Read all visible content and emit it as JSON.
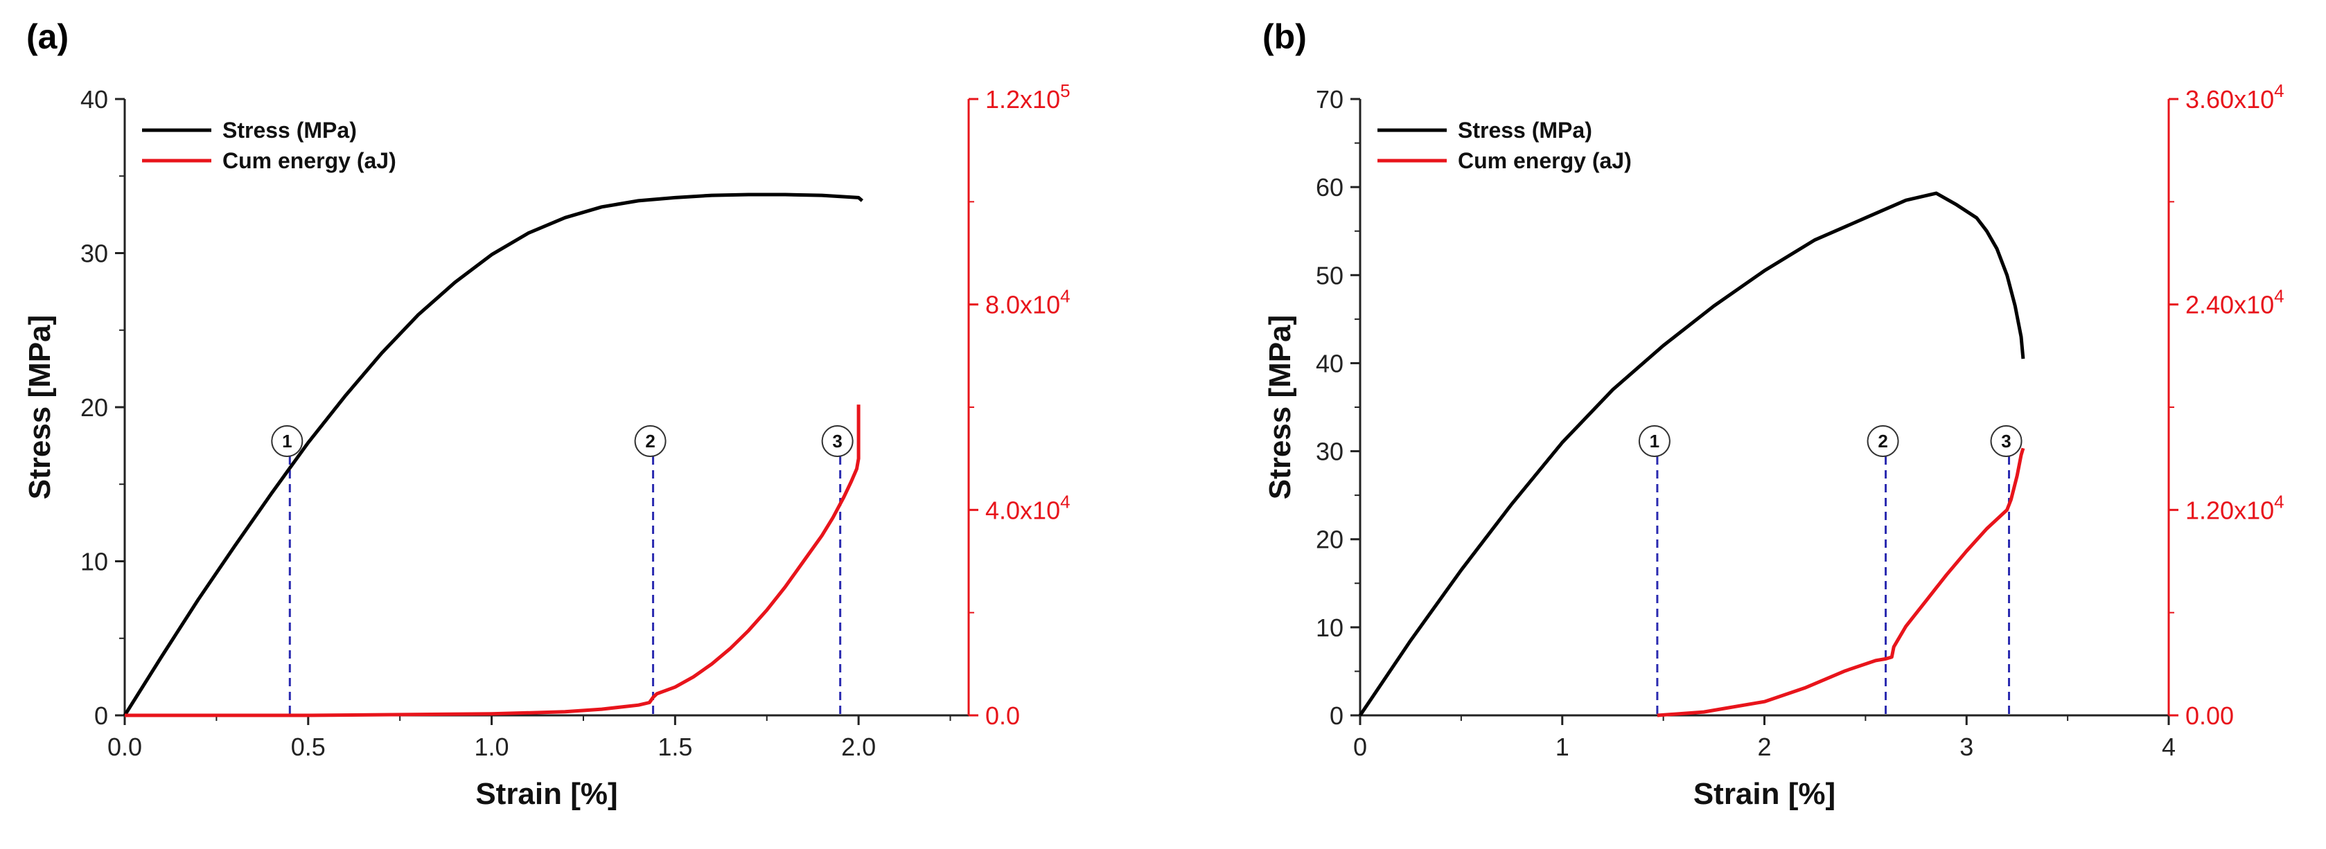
{
  "chart_data": [
    {
      "type": "line",
      "panel_label": "(a)",
      "xlabel": "Strain [%]",
      "ylabel": "Stress [MPa]",
      "xlim": [
        0,
        2.3
      ],
      "xticks": [
        0.0,
        0.5,
        1.0,
        1.5,
        2.0
      ],
      "xtick_labels": [
        "0.0",
        "0.5",
        "1.0",
        "1.5",
        "2.0"
      ],
      "ylim": [
        0,
        40
      ],
      "yticks": [
        0,
        10,
        20,
        30,
        40
      ],
      "ytick_labels": [
        "0",
        "10",
        "20",
        "30",
        "40"
      ],
      "y2lim": [
        0,
        120000
      ],
      "y2ticks": [
        0,
        40000,
        80000,
        120000
      ],
      "y2tick_labels": [
        "0.0",
        "4.0x10",
        "8.0x10",
        "1.2x10"
      ],
      "y2tick_exponents": [
        "",
        "4",
        "4",
        "5"
      ],
      "y2color": "#e8141b",
      "legend": [
        "Stress (MPa)",
        "Cum energy (aJ)"
      ],
      "series": [
        {
          "name": "Stress (MPa)",
          "axis": "left",
          "color": "#000000",
          "x": [
            0,
            0.1,
            0.2,
            0.3,
            0.4,
            0.5,
            0.6,
            0.7,
            0.8,
            0.9,
            1.0,
            1.1,
            1.2,
            1.3,
            1.4,
            1.5,
            1.6,
            1.7,
            1.8,
            1.9,
            2.0,
            2.01
          ],
          "y": [
            0,
            3.8,
            7.5,
            11.0,
            14.4,
            17.7,
            20.7,
            23.5,
            26.0,
            28.1,
            29.9,
            31.3,
            32.3,
            33.0,
            33.4,
            33.6,
            33.75,
            33.8,
            33.8,
            33.75,
            33.6,
            33.4
          ]
        },
        {
          "name": "Cum energy (aJ)",
          "axis": "right",
          "color": "#e8141b",
          "x": [
            0,
            0.5,
            1.0,
            1.2,
            1.3,
            1.4,
            1.43,
            1.44,
            1.45,
            1.5,
            1.55,
            1.6,
            1.65,
            1.7,
            1.75,
            1.8,
            1.85,
            1.9,
            1.93,
            1.96,
            1.98,
            1.995,
            2.0,
            2.0,
            2.0
          ],
          "y": [
            0,
            0,
            300,
            700,
            1200,
            2000,
            2500,
            3500,
            4200,
            5500,
            7500,
            10000,
            13000,
            16500,
            20500,
            25000,
            30000,
            35000,
            38500,
            42500,
            45500,
            48000,
            50000,
            55000,
            60500
          ]
        }
      ],
      "markers": [
        {
          "label": "1",
          "x": 0.45,
          "y": 15.1
        },
        {
          "label": "2",
          "x": 1.44,
          "y": 0.7
        },
        {
          "label": "3",
          "x": 1.95,
          "y": 13.9
        }
      ]
    },
    {
      "type": "line",
      "panel_label": "(b)",
      "xlabel": "Strain [%]",
      "ylabel": "Stress [MPa]",
      "xlim": [
        0,
        4
      ],
      "xticks": [
        0,
        1,
        2,
        3,
        4
      ],
      "xtick_labels": [
        "0",
        "1",
        "2",
        "3",
        "4"
      ],
      "ylim": [
        0,
        70
      ],
      "yticks": [
        0,
        10,
        20,
        30,
        40,
        50,
        60,
        70
      ],
      "ytick_labels": [
        "0",
        "10",
        "20",
        "30",
        "40",
        "50",
        "60",
        "70"
      ],
      "y2lim": [
        0,
        36000
      ],
      "y2ticks": [
        0,
        12000,
        24000,
        36000
      ],
      "y2tick_labels": [
        "0.00",
        "1.20x10",
        "2.40x10",
        "3.60x10"
      ],
      "y2tick_exponents": [
        "",
        "4",
        "4",
        "4"
      ],
      "y2color": "#e8141b",
      "legend": [
        "Stress (MPa)",
        "Cum energy (aJ)"
      ],
      "series": [
        {
          "name": "Stress (MPa)",
          "axis": "left",
          "color": "#000000",
          "x": [
            0,
            0.25,
            0.5,
            0.75,
            1.0,
            1.25,
            1.5,
            1.75,
            2.0,
            2.25,
            2.5,
            2.7,
            2.85,
            2.95,
            3.05,
            3.1,
            3.15,
            3.2,
            3.24,
            3.27,
            3.28
          ],
          "y": [
            0,
            8.5,
            16.5,
            24.0,
            31.0,
            37.0,
            42.0,
            46.5,
            50.5,
            54.0,
            56.5,
            58.5,
            59.3,
            58.0,
            56.5,
            55.0,
            53.0,
            50.0,
            46.5,
            43.0,
            40.5
          ]
        },
        {
          "name": "Cum energy (aJ)",
          "axis": "right",
          "color": "#e8141b",
          "x": [
            1.47,
            1.7,
            1.8,
            2.0,
            2.2,
            2.4,
            2.55,
            2.6,
            2.63,
            2.64,
            2.7,
            2.8,
            2.9,
            3.0,
            3.1,
            3.2,
            3.22,
            3.25,
            3.27,
            3.28
          ],
          "y": [
            0,
            200,
            400,
            800,
            1600,
            2600,
            3200,
            3300,
            3400,
            4000,
            5200,
            6700,
            8200,
            9600,
            10900,
            12000,
            12600,
            14000,
            15200,
            15600
          ]
        }
      ],
      "markers": [
        {
          "label": "1",
          "x": 1.47,
          "y": 0
        },
        {
          "label": "2",
          "x": 2.6,
          "y": 6.4
        },
        {
          "label": "3",
          "x": 3.21,
          "y": 23.5
        }
      ]
    }
  ]
}
